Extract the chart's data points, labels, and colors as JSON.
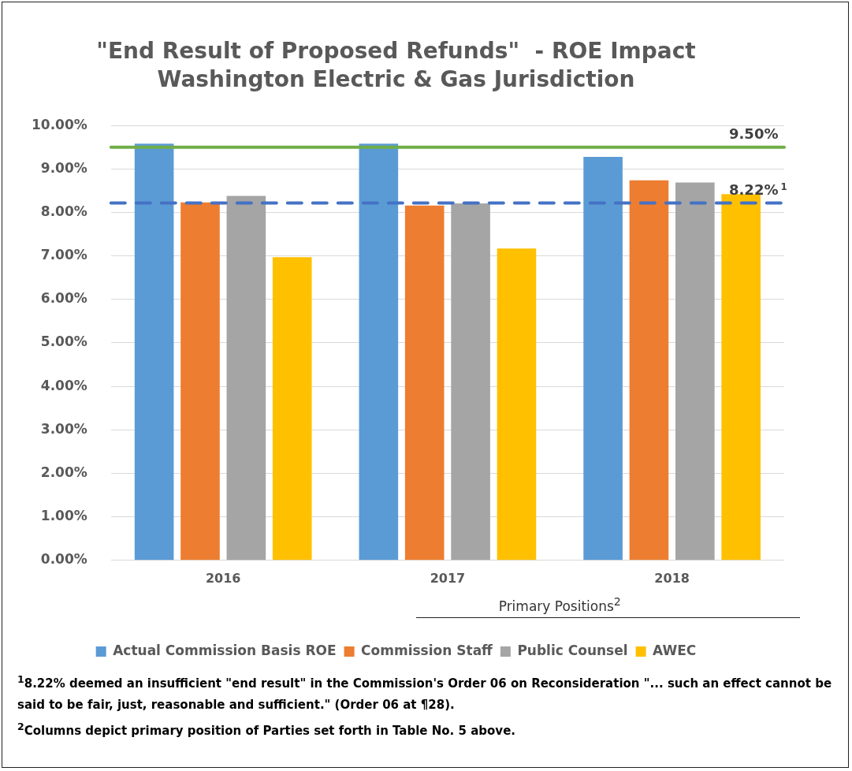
{
  "chart_data": {
    "type": "bar",
    "title": "\"End Result of Proposed Refunds\"  - ROE Impact",
    "subtitle": "Washington Electric & Gas Jurisdiction",
    "categories": [
      "2016",
      "2017",
      "2018"
    ],
    "series": [
      {
        "name": "Actual Commission Basis ROE",
        "color": "#5b9bd5",
        "values": [
          9.58,
          9.58,
          9.28
        ]
      },
      {
        "name": "Commission Staff",
        "color": "#ed7d31",
        "values": [
          8.23,
          8.16,
          8.74
        ]
      },
      {
        "name": "Public Counsel",
        "color": "#a5a5a5",
        "values": [
          8.38,
          8.21,
          8.69
        ]
      },
      {
        "name": "AWEC",
        "color": "#ffc000",
        "values": [
          6.97,
          7.17,
          8.42
        ]
      }
    ],
    "ylim": [
      0,
      10
    ],
    "yticks": [
      {
        "value": 0,
        "label": "0.00%"
      },
      {
        "value": 1,
        "label": "1.00%"
      },
      {
        "value": 2,
        "label": "2.00%"
      },
      {
        "value": 3,
        "label": "3.00%"
      },
      {
        "value": 4,
        "label": "4.00%"
      },
      {
        "value": 5,
        "label": "5.00%"
      },
      {
        "value": 6,
        "label": "6.00%"
      },
      {
        "value": 7,
        "label": "7.00%"
      },
      {
        "value": 8,
        "label": "8.00%"
      },
      {
        "value": 9,
        "label": "9.00%"
      },
      {
        "value": 10,
        "label": "10.00%"
      }
    ],
    "ref_lines": [
      {
        "axis": "y",
        "value": 9.5,
        "label": "9.50%",
        "color": "#70ad47",
        "line_style": "solid"
      },
      {
        "axis": "y",
        "value": 8.22,
        "label": "8.22%$^{1}$",
        "color": "#4472c4",
        "line_style": "dashed"
      }
    ],
    "grid": "y",
    "legend": "bottom",
    "annotations": [
      "Primary Positions$^{2}$",
      "$^{1}$8.22% deemed an insufficient \"end result\" in the Commission's Order 06 on Reconsideration \"... such an effect cannot be said to be fair, just, reasonable and sufficient.\"  (Order 06 at ¶28).",
      "$^{2}$Columns depict primary position of Parties set forth in Table No. 5 above."
    ]
  }
}
